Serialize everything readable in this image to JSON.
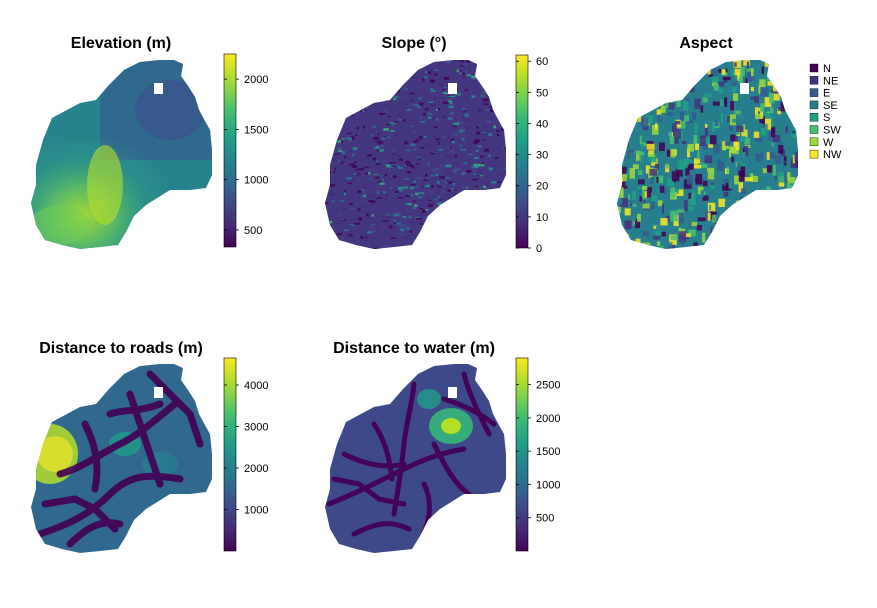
{
  "palette": [
    "#440154",
    "#482878",
    "#3e4989",
    "#31688e",
    "#26828e",
    "#1f9e89",
    "#35b779",
    "#6ece58",
    "#b5de2b",
    "#fde725"
  ],
  "chart_data": [
    {
      "type": "heatmap",
      "title": "Elevation (m)",
      "colorbar": {
        "range": [
          330,
          2250
        ],
        "ticks": [
          500,
          1000,
          1500,
          2000
        ],
        "tick_labels": [
          "500",
          "1000",
          "1500",
          "2000"
        ]
      }
    },
    {
      "type": "heatmap",
      "title": "Slope (°)",
      "colorbar": {
        "range": [
          0,
          62
        ],
        "ticks": [
          0,
          10,
          20,
          30,
          40,
          50,
          60
        ],
        "tick_labels": [
          "0",
          "10",
          "20",
          "30",
          "40",
          "50",
          "60"
        ]
      }
    },
    {
      "type": "heatmap",
      "title": "Aspect",
      "legend": {
        "placement": "right",
        "items": [
          {
            "label": "N",
            "color": "#440154"
          },
          {
            "label": "NE",
            "color": "#46337e"
          },
          {
            "label": "E",
            "color": "#365c8d"
          },
          {
            "label": "SE",
            "color": "#277f8e"
          },
          {
            "label": "S",
            "color": "#1fa187"
          },
          {
            "label": "SW",
            "color": "#4ac16d"
          },
          {
            "label": "W",
            "color": "#a0da39"
          },
          {
            "label": "NW",
            "color": "#fde725"
          }
        ]
      }
    },
    {
      "type": "heatmap",
      "title": "Distance to roads (m)",
      "colorbar": {
        "range": [
          0,
          4650
        ],
        "ticks": [
          1000,
          2000,
          3000,
          4000
        ],
        "tick_labels": [
          "1000",
          "2000",
          "3000",
          "4000"
        ]
      }
    },
    {
      "type": "heatmap",
      "title": "Distance to water (m)",
      "colorbar": {
        "range": [
          0,
          2900
        ],
        "ticks": [
          500,
          1000,
          1500,
          2000,
          2500
        ],
        "tick_labels": [
          "500",
          "1000",
          "1500",
          "2000",
          "2500"
        ]
      }
    }
  ]
}
